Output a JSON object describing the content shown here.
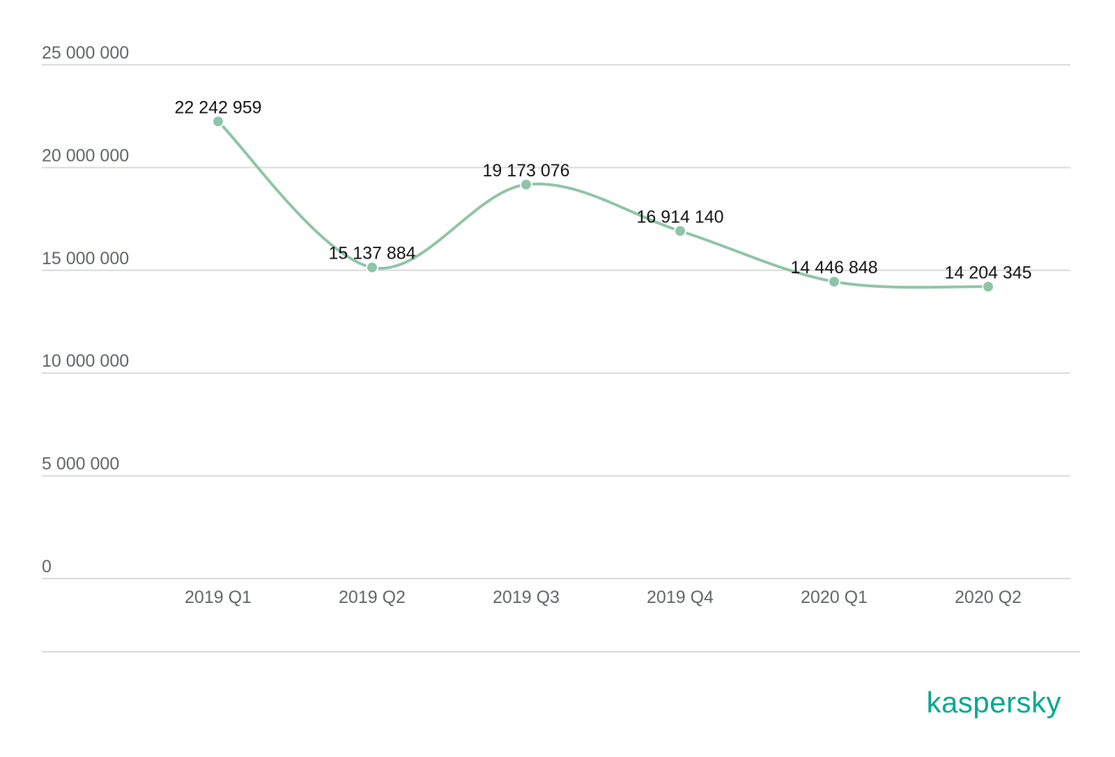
{
  "chart_data": {
    "type": "line",
    "categories": [
      "2019 Q1",
      "2019 Q2",
      "2019 Q3",
      "2019 Q4",
      "2020 Q1",
      "2020 Q2"
    ],
    "series": [
      {
        "values": [
          22242959,
          15137884,
          19173076,
          16914140,
          14446848,
          14204345
        ],
        "labels": [
          "22 242 959",
          "15 137 884",
          "19 173 076",
          "16 914 140",
          "14 446 848",
          "14 204 345"
        ],
        "color": "#8fc4a7"
      }
    ],
    "ylim": [
      0,
      25000000
    ],
    "yticks": [
      0,
      5000000,
      10000000,
      15000000,
      20000000,
      25000000
    ],
    "ytick_labels": [
      "0",
      "5 000 000",
      "10 000 000",
      "15 000 000",
      "20 000 000",
      "25 000 000"
    ],
    "grid": true,
    "smooth": true
  },
  "branding": {
    "logo_text": "kaspersky",
    "logo_color": "#00a88e"
  }
}
